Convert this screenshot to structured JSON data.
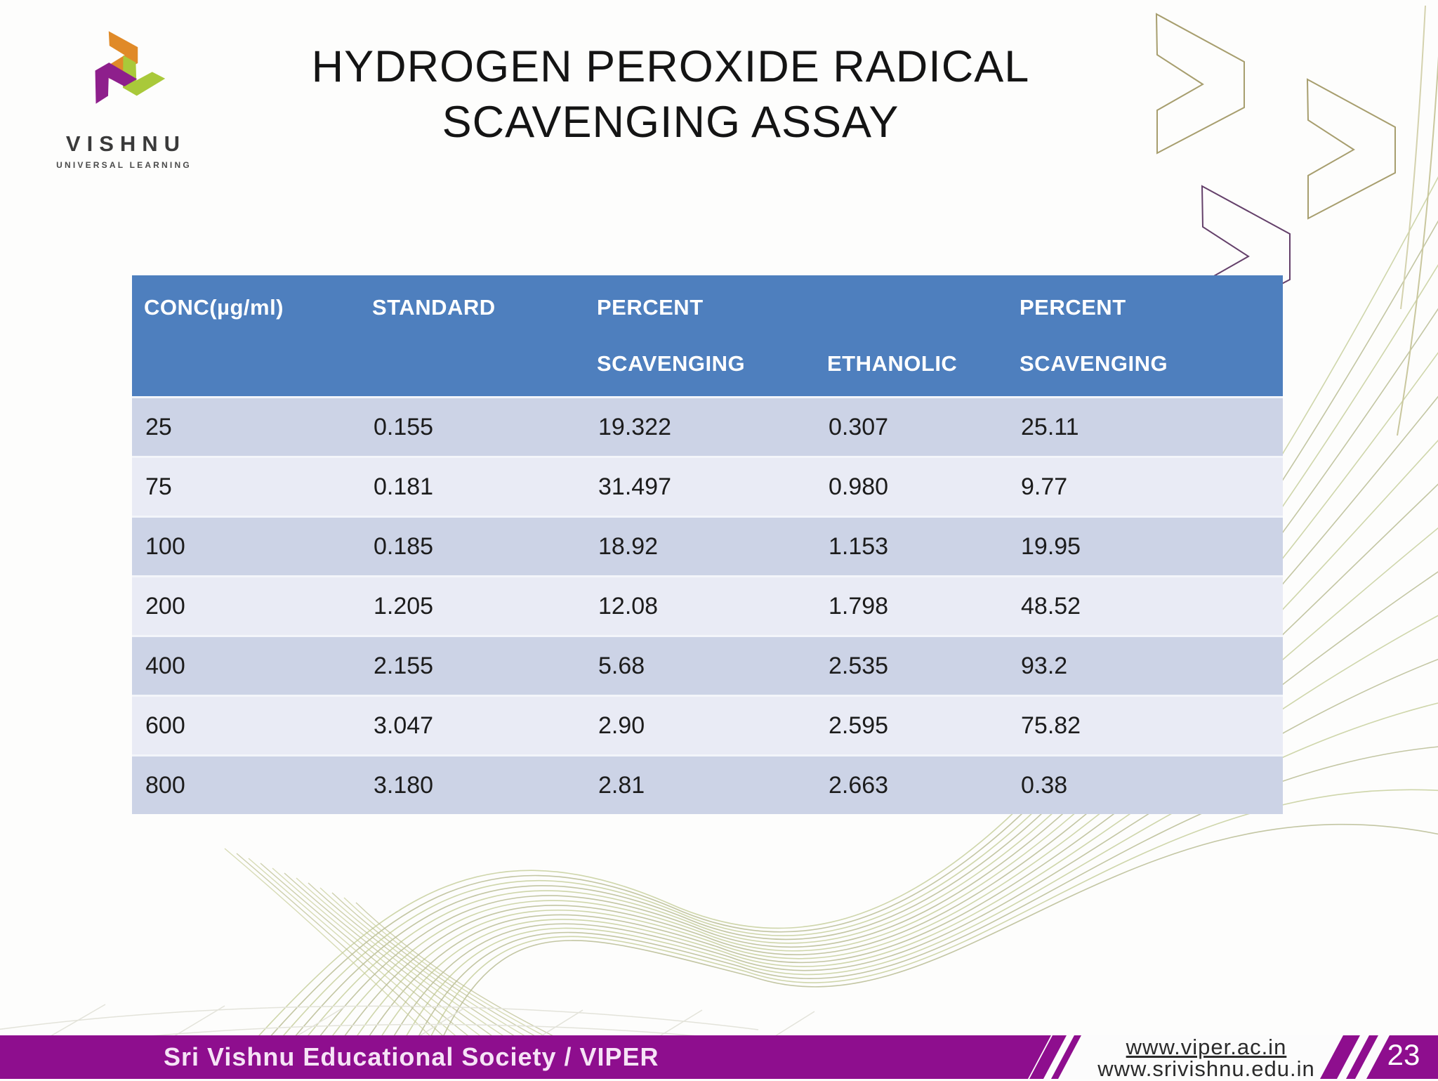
{
  "slide": {
    "title_line1": "HYDROGEN PEROXIDE RADICAL",
    "title_line2": "SCAVENGING ASSAY",
    "page_number": "23"
  },
  "logo": {
    "name": "VISHNU",
    "tagline": "UNIVERSAL LEARNING",
    "colors": {
      "orange": "#e08a28",
      "purple": "#8e1f8c",
      "green": "#a9c93a"
    }
  },
  "table": {
    "columns": [
      {
        "line1": "CONC(µg/ml)",
        "line2": ""
      },
      {
        "line1": "STANDARD",
        "line2": ""
      },
      {
        "line1": "PERCENT",
        "line2": "SCAVENGING"
      },
      {
        "line1": "",
        "line2": "ETHANOLIC"
      },
      {
        "line1": "PERCENT",
        "line2": "SCAVENGING"
      }
    ],
    "rows": [
      [
        "25",
        "0.155",
        "19.322",
        "0.307",
        "25.11"
      ],
      [
        "75",
        "0.181",
        "31.497",
        "0.980",
        "9.77"
      ],
      [
        "100",
        "0.185",
        "18.92",
        "1.153",
        "19.95"
      ],
      [
        "200",
        "1.205",
        "12.08",
        "1.798",
        "48.52"
      ],
      [
        "400",
        "2.155",
        "5.68",
        "2.535",
        "93.2"
      ],
      [
        "600",
        "3.047",
        "2.90",
        "2.595",
        "75.82"
      ],
      [
        "800",
        "3.180",
        "2.81",
        "2.663",
        "0.38"
      ]
    ],
    "colors": {
      "header_bg": "#4e7fbe",
      "row_odd": "#ccd3e6",
      "row_even": "#e9ebf5"
    }
  },
  "footer": {
    "society": "Sri Vishnu Educational Society / VIPER",
    "url1": "www.viper.ac.in",
    "url2": "www.srivishnu.edu.in",
    "bar_color": "#8e0e8e"
  },
  "chart_data": {
    "type": "table",
    "title": "HYDROGEN PEROXIDE RADICAL SCAVENGING ASSAY",
    "columns": [
      "CONC(µg/ml)",
      "STANDARD",
      "PERCENT SCAVENGING",
      "ETHANOLIC",
      "PERCENT SCAVENGING"
    ],
    "rows": [
      [
        25,
        0.155,
        19.322,
        0.307,
        25.11
      ],
      [
        75,
        0.181,
        31.497,
        0.98,
        9.77
      ],
      [
        100,
        0.185,
        18.92,
        1.153,
        19.95
      ],
      [
        200,
        1.205,
        12.08,
        1.798,
        48.52
      ],
      [
        400,
        2.155,
        5.68,
        2.535,
        93.2
      ],
      [
        600,
        3.047,
        2.9,
        2.595,
        75.82
      ],
      [
        800,
        3.18,
        2.81,
        2.663,
        0.38
      ]
    ]
  }
}
